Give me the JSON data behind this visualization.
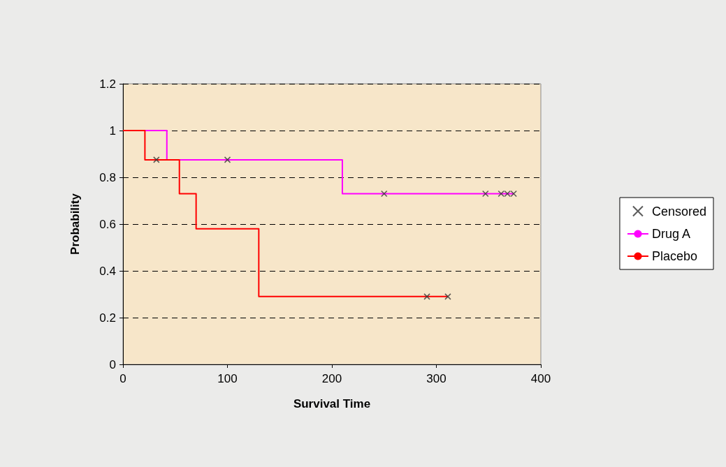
{
  "chart_data": {
    "type": "step",
    "xlabel": "Survival Time",
    "ylabel": "Probability",
    "xlim": [
      0,
      400
    ],
    "xticks": [
      0,
      100,
      200,
      300,
      400
    ],
    "ylim": [
      0,
      1.2
    ],
    "yticks": [
      0,
      0.2,
      0.4,
      0.6,
      0.8,
      1,
      1.2
    ],
    "grid": "y",
    "legend": "right",
    "series": [
      {
        "name": "Censored",
        "type": "scatter",
        "marker": "cross",
        "color": "#333333",
        "x": [
          32,
          100,
          250,
          347,
          362,
          368,
          374,
          291,
          311
        ],
        "values": [
          0.875,
          0.875,
          0.73,
          0.73,
          0.73,
          0.73,
          0.73,
          0.29,
          0.29
        ]
      },
      {
        "name": "Drug A",
        "color": "#ff00ff",
        "marker": "none",
        "x": [
          0,
          42,
          210,
          374
        ],
        "values": [
          1,
          0.875,
          0.73,
          0.73
        ]
      },
      {
        "name": "Placebo",
        "color": "#ff0000",
        "marker": "none",
        "x": [
          0,
          21,
          54,
          70,
          130,
          311
        ],
        "values": [
          1,
          0.875,
          0.73,
          0.58,
          0.29,
          0.29
        ]
      }
    ]
  }
}
